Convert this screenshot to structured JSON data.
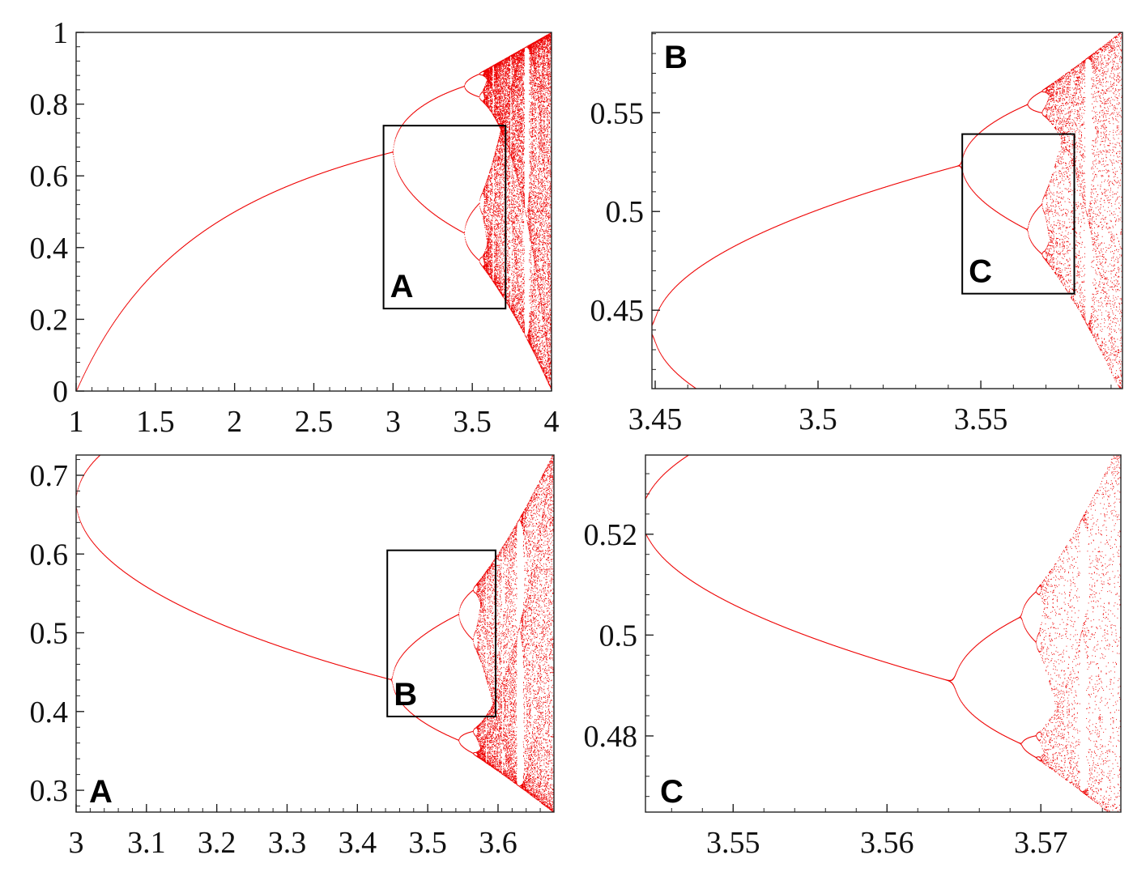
{
  "chart_data": [
    {
      "type": "scatter",
      "series": "bifurcation diagram of the logistic map x(n+1) = r·x(n)·(1−x(n))",
      "label": "",
      "xlim": [
        1,
        4
      ],
      "ylim": [
        0,
        1
      ],
      "xticks": [
        1,
        1.5,
        2,
        2.5,
        3,
        3.5,
        4
      ],
      "yticks": [
        0,
        0.2,
        0.4,
        0.6,
        0.8,
        1
      ],
      "xtick_labels": [
        "1",
        "1.5",
        "2",
        "2.5",
        "3",
        "3.5",
        "4"
      ],
      "ytick_labels": [
        "0",
        "0.2",
        "0.4",
        "0.6",
        "0.8",
        "1"
      ],
      "inset": {
        "label": "A",
        "x": [
          2.94,
          3.71
        ],
        "y": [
          0.23,
          0.74
        ]
      },
      "grid": false
    },
    {
      "type": "scatter",
      "series": "bifurcation diagram of the logistic map",
      "label": "B",
      "xlim": [
        3.449,
        3.5935
      ],
      "ylim": [
        0.4103,
        0.5907
      ],
      "xticks": [
        3.45,
        3.5,
        3.55
      ],
      "yticks": [
        0.45,
        0.5,
        0.55
      ],
      "xtick_labels": [
        "3.45",
        "3.5",
        "3.55"
      ],
      "ytick_labels": [
        "0.45",
        "0.5",
        "0.55"
      ],
      "inset": {
        "label": "C",
        "x": [
          3.5443,
          3.5787
        ],
        "y": [
          0.4584,
          0.5392
        ]
      },
      "grid": false
    },
    {
      "type": "scatter",
      "series": "bifurcation diagram of the logistic map",
      "label": "A",
      "xlim": [
        3,
        3.6795
      ],
      "ylim": [
        0.2723,
        0.7257
      ],
      "xticks": [
        3,
        3.1,
        3.2,
        3.3,
        3.4,
        3.5,
        3.6
      ],
      "yticks": [
        0.3,
        0.4,
        0.5,
        0.6,
        0.7
      ],
      "xtick_labels": [
        "3",
        "3.1",
        "3.2",
        "3.3",
        "3.4",
        "3.5",
        "3.6"
      ],
      "ytick_labels": [
        "0.3",
        "0.4",
        "0.5",
        "0.6",
        "0.7"
      ],
      "inset": {
        "label": "B",
        "x": [
          3.4425,
          3.5965
        ],
        "y": [
          0.3937,
          0.6047
        ]
      },
      "grid": false
    },
    {
      "type": "scatter",
      "series": "bifurcation diagram of the logistic map",
      "label": "C",
      "xlim": [
        3.5443,
        3.5752
      ],
      "ylim": [
        0.4649,
        0.5357
      ],
      "xticks": [
        3.55,
        3.56,
        3.57
      ],
      "yticks": [
        0.48,
        0.5,
        0.52
      ],
      "xtick_labels": [
        "3.55",
        "3.56",
        "3.57"
      ],
      "ytick_labels": [
        "0.48",
        "0.5",
        "0.52"
      ],
      "grid": false
    }
  ],
  "colors": {
    "points": "#ee0000",
    "frame": "#222222",
    "zoom_box": "#000000"
  }
}
